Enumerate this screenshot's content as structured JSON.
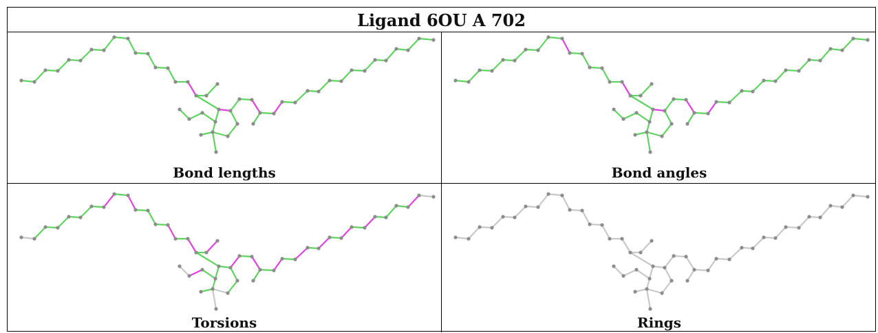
{
  "title": "Ligand 6OU A 702",
  "panels": [
    {
      "label": "Bond lengths"
    },
    {
      "label": "Bond angles"
    },
    {
      "label": "Torsions"
    },
    {
      "label": "Rings"
    }
  ],
  "colors": {
    "ok_bond": "#5fd35f",
    "outlier_bond": "#e040e0",
    "neutral_bond": "#c8c8c8",
    "atom": "#8c8c8c"
  }
}
